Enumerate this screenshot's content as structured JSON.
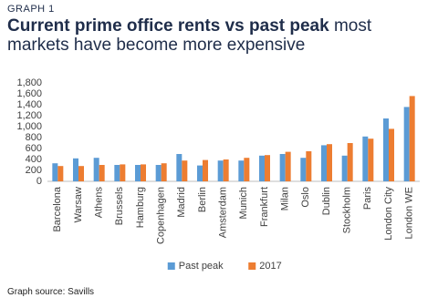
{
  "chart_data": {
    "type": "bar",
    "label": "GRAPH 1",
    "title": "Current prime office rents vs past peak",
    "subtitle": "most markets have become more expensive",
    "source": "Graph source: Savills",
    "categories": [
      "Barcelona",
      "Warsaw",
      "Athens",
      "Brussels",
      "Hamburg",
      "Copenhagen",
      "Madrid",
      "Berlin",
      "Amsterdam",
      "Munich",
      "Frankfurt",
      "Milan",
      "Oslo",
      "Dublin",
      "Stockholm",
      "Paris",
      "London City",
      "London WE"
    ],
    "series": [
      {
        "name": "Past peak",
        "color": "#5b9bd5",
        "values": [
          330,
          420,
          430,
          300,
          300,
          300,
          500,
          290,
          380,
          380,
          470,
          500,
          430,
          660,
          470,
          820,
          1150,
          1360
        ]
      },
      {
        "name": "2017",
        "color": "#ed7d31",
        "values": [
          280,
          280,
          300,
          310,
          310,
          330,
          380,
          390,
          400,
          430,
          480,
          540,
          550,
          680,
          700,
          780,
          960,
          1560
        ]
      }
    ],
    "ylim": [
      0,
      1800
    ],
    "yticks": [
      0,
      200,
      400,
      600,
      800,
      {
        "value": 1000,
        "label": "1,000"
      },
      {
        "value": 1200,
        "label": "1,200"
      },
      {
        "value": 1400,
        "label": "1,400"
      },
      {
        "value": 1600,
        "label": "1,600"
      },
      {
        "value": 1800,
        "label": "1,800"
      }
    ],
    "grid": false,
    "legend": "bottom"
  }
}
